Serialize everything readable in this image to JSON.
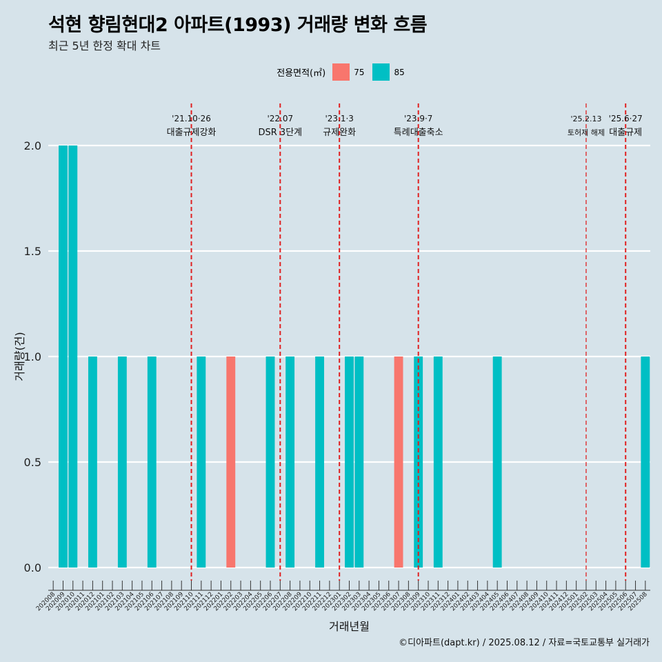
{
  "header": {
    "title": "석현 향림현대2 아파트(1993) 거래량 변화 흐름",
    "subtitle": "최근 5년 한정 확대 차트"
  },
  "legend": {
    "title": "전용면적(㎡)",
    "items": [
      {
        "label": "75",
        "color": "#f8766d"
      },
      {
        "label": "85",
        "color": "#00bfc4"
      }
    ]
  },
  "footer": "©디아파트(dapt.kr) / 2025.08.12 / 자료=국토교통부 실거래가",
  "chart_data": {
    "type": "bar",
    "stacked": true,
    "xlabel": "거래년월",
    "ylabel": "거래량(건)",
    "ylim": [
      0,
      2.0
    ],
    "yticks": [
      "0.0",
      "0.5",
      "1.0",
      "1.5",
      "2.0"
    ],
    "grid": true,
    "categories": [
      "202008",
      "202009",
      "202010",
      "202011",
      "202012",
      "202101",
      "202102",
      "202103",
      "202104",
      "202105",
      "202106",
      "202107",
      "202108",
      "202109",
      "202110",
      "202111",
      "202112",
      "202201",
      "202202",
      "202203",
      "202204",
      "202205",
      "202206",
      "202207",
      "202208",
      "202209",
      "202210",
      "202211",
      "202212",
      "202301",
      "202302",
      "202303",
      "202304",
      "202305",
      "202306",
      "202307",
      "202308",
      "202309",
      "202310",
      "202311",
      "202312",
      "202401",
      "202402",
      "202403",
      "202404",
      "202405",
      "202406",
      "202407",
      "202408",
      "202409",
      "202410",
      "202411",
      "202412",
      "202501",
      "202502",
      "202503",
      "202504",
      "202505",
      "202506",
      "202507",
      "202508"
    ],
    "series": [
      {
        "name": "75",
        "color": "#f8766d",
        "values": [
          0,
          0,
          0,
          0,
          0,
          0,
          0,
          0,
          0,
          0,
          0,
          0,
          0,
          0,
          0,
          0,
          0,
          0,
          1,
          0,
          0,
          0,
          0,
          0,
          0,
          0,
          0,
          0,
          0,
          0,
          0,
          0,
          0,
          0,
          0,
          1,
          0,
          0,
          0,
          0,
          0,
          0,
          0,
          0,
          0,
          0,
          0,
          0,
          0,
          0,
          0,
          0,
          0,
          0,
          0,
          0,
          0,
          0,
          0,
          0,
          0
        ]
      },
      {
        "name": "85",
        "color": "#00bfc4",
        "values": [
          0,
          2,
          2,
          0,
          1,
          0,
          0,
          1,
          0,
          0,
          1,
          0,
          0,
          0,
          0,
          1,
          0,
          0,
          0,
          0,
          0,
          0,
          1,
          0,
          1,
          0,
          0,
          1,
          0,
          0,
          1,
          1,
          0,
          0,
          0,
          0,
          0,
          1,
          0,
          1,
          0,
          0,
          0,
          0,
          0,
          1,
          0,
          0,
          0,
          0,
          0,
          0,
          0,
          0,
          0,
          0,
          0,
          0,
          0,
          0,
          1
        ]
      }
    ],
    "annotations": [
      {
        "x": "202110",
        "date": "'21.10·26",
        "text": "대출규제강화"
      },
      {
        "x": "202207",
        "date": "'22.07",
        "text": "DSR 3단계"
      },
      {
        "x": "202301",
        "date": "'23.1·3",
        "text": "규제완화"
      },
      {
        "x": "202309",
        "date": "'23.9·7",
        "text": "특례대출축소"
      },
      {
        "x": "202502",
        "date": "'25.2.13",
        "text": "토허제 해제",
        "small": true
      },
      {
        "x": "202506",
        "date": "'25.6·27",
        "text": "대출규제"
      }
    ]
  }
}
